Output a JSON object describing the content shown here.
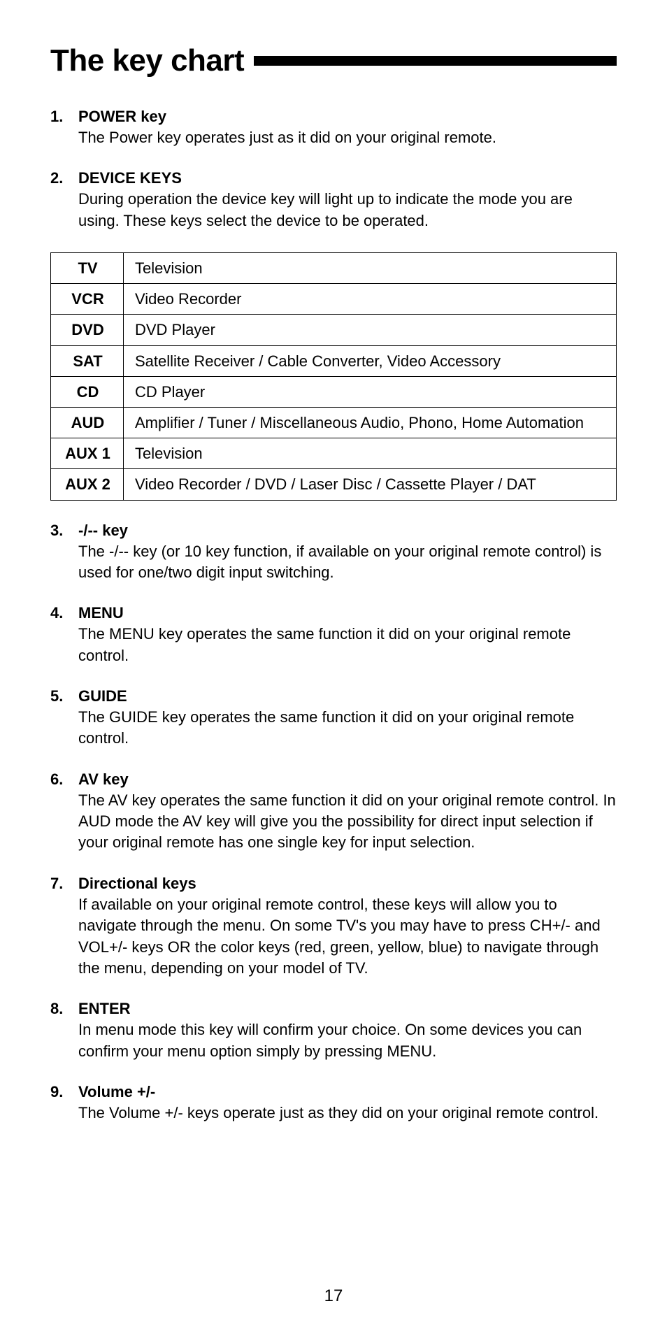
{
  "page_title": "The key chart",
  "page_number": "17",
  "text_color": "#000000",
  "background_color": "#ffffff",
  "items": [
    {
      "num": "1.",
      "title": "POWER key",
      "body": "The Power key operates just as it did on your original remote."
    },
    {
      "num": "2.",
      "title": "DEVICE KEYS",
      "body": "During operation the device key will light up to indicate the mode you are using. These keys select the device to be operated."
    },
    {
      "num": "3.",
      "title": "-/-- key",
      "body": "The -/-- key (or 10 key function, if available on your original remote control) is used for one/two digit input switching."
    },
    {
      "num": "4.",
      "title": "MENU",
      "body": "The MENU key operates the same function it did on your original remote control."
    },
    {
      "num": "5.",
      "title": "GUIDE",
      "body": "The GUIDE key operates the same function it did on your original remote control."
    },
    {
      "num": "6.",
      "title": "AV key",
      "body": "The AV key operates the same function it did on your original remote control. In AUD mode the AV key will give you the possibility for direct input selection if your original remote has one single key for input selection."
    },
    {
      "num": "7.",
      "title": "Directional keys",
      "body": "If available on your original remote control, these keys will allow you to navigate through the menu. On some TV's you may have to press CH+/- and VOL+/- keys OR the color keys (red, green, yellow, blue) to navigate through the menu, depending on your model of TV."
    },
    {
      "num": "8.",
      "title": "ENTER",
      "body": "In menu mode this key will confirm your choice. On some devices you can confirm your menu option simply by pressing MENU."
    },
    {
      "num": "9.",
      "title": "Volume +/-",
      "body": "The Volume +/- keys operate just as they did on your original remote control."
    }
  ],
  "device_table": {
    "rows": [
      {
        "key": "TV",
        "desc": "Television"
      },
      {
        "key": "VCR",
        "desc": "Video Recorder"
      },
      {
        "key": "DVD",
        "desc": "DVD Player"
      },
      {
        "key": "SAT",
        "desc": "Satellite Receiver / Cable Converter, Video Accessory"
      },
      {
        "key": "CD",
        "desc": "CD Player"
      },
      {
        "key": "AUD",
        "desc": "Amplifier / Tuner / Miscellaneous Audio, Phono, Home Automation"
      },
      {
        "key": "AUX 1",
        "desc": "Television"
      },
      {
        "key": "AUX 2",
        "desc": "Video Recorder / DVD / Laser Disc / Cassette Player / DAT"
      }
    ]
  }
}
